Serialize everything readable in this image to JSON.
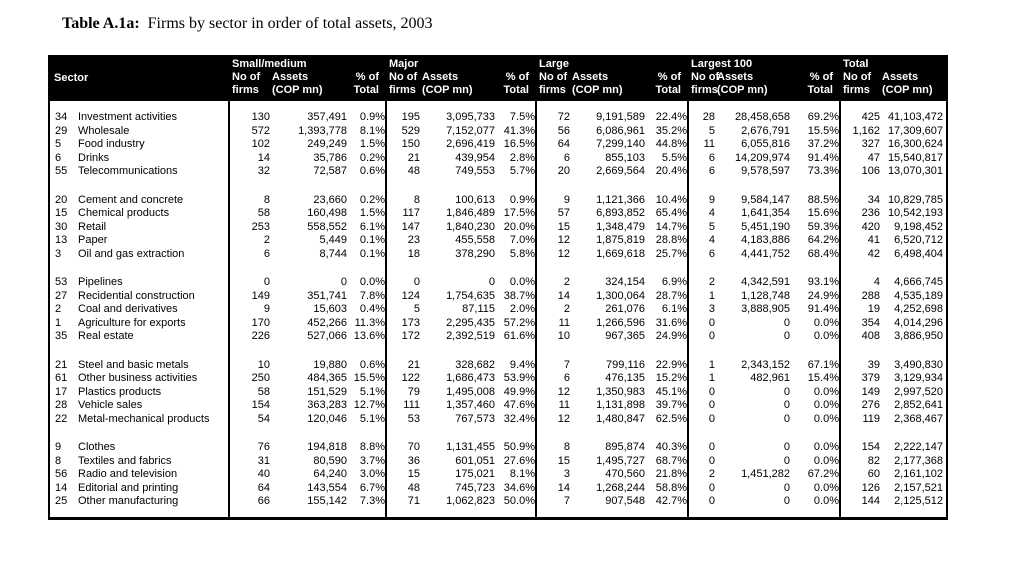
{
  "title": {
    "label": "Table A.1a:",
    "text": "Firms by sector in order of total assets, 2003"
  },
  "table": {
    "header": {
      "sector_label": "Sector",
      "groups": [
        "Small/medium",
        "Major",
        "Large",
        "Largest 100",
        "Total"
      ],
      "col_labels": {
        "firms_l1": "No of",
        "firms_l2": "firms",
        "assets_l1": "Assets",
        "assets_l2": "(COP mn)",
        "pct_l1": "% of",
        "pct_l2": "Total"
      }
    },
    "colors": {
      "header_bg": "#000000",
      "header_text": "#ffffff",
      "body_text": "#000000",
      "page_bg": "#ffffff"
    },
    "blocks": [
      [
        {
          "code": "34",
          "name": "Investment activities",
          "cells": [
            "130",
            "357,491",
            "0.9%",
            "195",
            "3,095,733",
            "7.5%",
            "72",
            "9,191,589",
            "22.4%",
            "28",
            "28,458,658",
            "69.2%",
            "425",
            "41,103,472"
          ]
        },
        {
          "code": "29",
          "name": "Wholesale",
          "cells": [
            "572",
            "1,393,778",
            "8.1%",
            "529",
            "7,152,077",
            "41.3%",
            "56",
            "6,086,961",
            "35.2%",
            "5",
            "2,676,791",
            "15.5%",
            "1,162",
            "17,309,607"
          ]
        },
        {
          "code": "5",
          "name": "Food industry",
          "cells": [
            "102",
            "249,249",
            "1.5%",
            "150",
            "2,696,419",
            "16.5%",
            "64",
            "7,299,140",
            "44.8%",
            "11",
            "6,055,816",
            "37.2%",
            "327",
            "16,300,624"
          ]
        },
        {
          "code": "6",
          "name": "Drinks",
          "cells": [
            "14",
            "35,786",
            "0.2%",
            "21",
            "439,954",
            "2.8%",
            "6",
            "855,103",
            "5.5%",
            "6",
            "14,209,974",
            "91.4%",
            "47",
            "15,540,817"
          ]
        },
        {
          "code": "55",
          "name": "Telecommunications",
          "cells": [
            "32",
            "72,587",
            "0.6%",
            "48",
            "749,553",
            "5.7%",
            "20",
            "2,669,564",
            "20.4%",
            "6",
            "9,578,597",
            "73.3%",
            "106",
            "13,070,301"
          ]
        }
      ],
      [
        {
          "code": "20",
          "name": "Cement and concrete",
          "cells": [
            "8",
            "23,660",
            "0.2%",
            "8",
            "100,613",
            "0.9%",
            "9",
            "1,121,366",
            "10.4%",
            "9",
            "9,584,147",
            "88.5%",
            "34",
            "10,829,785"
          ]
        },
        {
          "code": "15",
          "name": "Chemical products",
          "cells": [
            "58",
            "160,498",
            "1.5%",
            "117",
            "1,846,489",
            "17.5%",
            "57",
            "6,893,852",
            "65.4%",
            "4",
            "1,641,354",
            "15.6%",
            "236",
            "10,542,193"
          ]
        },
        {
          "code": "30",
          "name": "Retail",
          "cells": [
            "253",
            "558,552",
            "6.1%",
            "147",
            "1,840,230",
            "20.0%",
            "15",
            "1,348,479",
            "14.7%",
            "5",
            "5,451,190",
            "59.3%",
            "420",
            "9,198,452"
          ]
        },
        {
          "code": "13",
          "name": "Paper",
          "cells": [
            "2",
            "5,449",
            "0.1%",
            "23",
            "455,558",
            "7.0%",
            "12",
            "1,875,819",
            "28.8%",
            "4",
            "4,183,886",
            "64.2%",
            "41",
            "6,520,712"
          ]
        },
        {
          "code": "3",
          "name": "Oil and gas extraction",
          "cells": [
            "6",
            "8,744",
            "0.1%",
            "18",
            "378,290",
            "5.8%",
            "12",
            "1,669,618",
            "25.7%",
            "6",
            "4,441,752",
            "68.4%",
            "42",
            "6,498,404"
          ]
        }
      ],
      [
        {
          "code": "53",
          "name": "Pipelines",
          "cells": [
            "0",
            "0",
            "0.0%",
            "0",
            "0",
            "0.0%",
            "2",
            "324,154",
            "6.9%",
            "2",
            "4,342,591",
            "93.1%",
            "4",
            "4,666,745"
          ]
        },
        {
          "code": "27",
          "name": "Recidential construction",
          "cells": [
            "149",
            "351,741",
            "7.8%",
            "124",
            "1,754,635",
            "38.7%",
            "14",
            "1,300,064",
            "28.7%",
            "1",
            "1,128,748",
            "24.9%",
            "288",
            "4,535,189"
          ]
        },
        {
          "code": "2",
          "name": "Coal and derivatives",
          "cells": [
            "9",
            "15,603",
            "0.4%",
            "5",
            "87,115",
            "2.0%",
            "2",
            "261,076",
            "6.1%",
            "3",
            "3,888,905",
            "91.4%",
            "19",
            "4,252,698"
          ]
        },
        {
          "code": "1",
          "name": "Agriculture for exports",
          "cells": [
            "170",
            "452,266",
            "11.3%",
            "173",
            "2,295,435",
            "57.2%",
            "11",
            "1,266,596",
            "31.6%",
            "0",
            "0",
            "0.0%",
            "354",
            "4,014,296"
          ]
        },
        {
          "code": "35",
          "name": "Real estate",
          "cells": [
            "226",
            "527,066",
            "13.6%",
            "172",
            "2,392,519",
            "61.6%",
            "10",
            "967,365",
            "24.9%",
            "0",
            "0",
            "0.0%",
            "408",
            "3,886,950"
          ]
        }
      ],
      [
        {
          "code": "21",
          "name": "Steel and basic metals",
          "cells": [
            "10",
            "19,880",
            "0.6%",
            "21",
            "328,682",
            "9.4%",
            "7",
            "799,116",
            "22.9%",
            "1",
            "2,343,152",
            "67.1%",
            "39",
            "3,490,830"
          ]
        },
        {
          "code": "61",
          "name": "Other business activities",
          "cells": [
            "250",
            "484,365",
            "15.5%",
            "122",
            "1,686,473",
            "53.9%",
            "6",
            "476,135",
            "15.2%",
            "1",
            "482,961",
            "15.4%",
            "379",
            "3,129,934"
          ]
        },
        {
          "code": "17",
          "name": "Plastics products",
          "cells": [
            "58",
            "151,529",
            "5.1%",
            "79",
            "1,495,008",
            "49.9%",
            "12",
            "1,350,983",
            "45.1%",
            "0",
            "0",
            "0.0%",
            "149",
            "2,997,520"
          ]
        },
        {
          "code": "28",
          "name": "Vehicle sales",
          "cells": [
            "154",
            "363,283",
            "12.7%",
            "111",
            "1,357,460",
            "47.6%",
            "11",
            "1,131,898",
            "39.7%",
            "0",
            "0",
            "0.0%",
            "276",
            "2,852,641"
          ]
        },
        {
          "code": "22",
          "name": "Metal-mechanical products",
          "cells": [
            "54",
            "120,046",
            "5.1%",
            "53",
            "767,573",
            "32.4%",
            "12",
            "1,480,847",
            "62.5%",
            "0",
            "0",
            "0.0%",
            "119",
            "2,368,467"
          ]
        }
      ],
      [
        {
          "code": "9",
          "name": "Clothes",
          "cells": [
            "76",
            "194,818",
            "8.8%",
            "70",
            "1,131,455",
            "50.9%",
            "8",
            "895,874",
            "40.3%",
            "0",
            "0",
            "0.0%",
            "154",
            "2,222,147"
          ]
        },
        {
          "code": "8",
          "name": "Textiles and fabrics",
          "cells": [
            "31",
            "80,590",
            "3.7%",
            "36",
            "601,051",
            "27.6%",
            "15",
            "1,495,727",
            "68.7%",
            "0",
            "0",
            "0.0%",
            "82",
            "2,177,368"
          ]
        },
        {
          "code": "56",
          "name": "Radio and television",
          "cells": [
            "40",
            "64,240",
            "3.0%",
            "15",
            "175,021",
            "8.1%",
            "3",
            "470,560",
            "21.8%",
            "2",
            "1,451,282",
            "67.2%",
            "60",
            "2,161,102"
          ]
        },
        {
          "code": "14",
          "name": "Editorial and printing",
          "cells": [
            "64",
            "143,554",
            "6.7%",
            "48",
            "745,723",
            "34.6%",
            "14",
            "1,268,244",
            "58.8%",
            "0",
            "0",
            "0.0%",
            "126",
            "2,157,521"
          ]
        },
        {
          "code": "25",
          "name": "Other manufacturing",
          "cells": [
            "66",
            "155,142",
            "7.3%",
            "71",
            "1,062,823",
            "50.0%",
            "7",
            "907,548",
            "42.7%",
            "0",
            "0",
            "0.0%",
            "144",
            "2,125,512"
          ]
        }
      ]
    ]
  }
}
